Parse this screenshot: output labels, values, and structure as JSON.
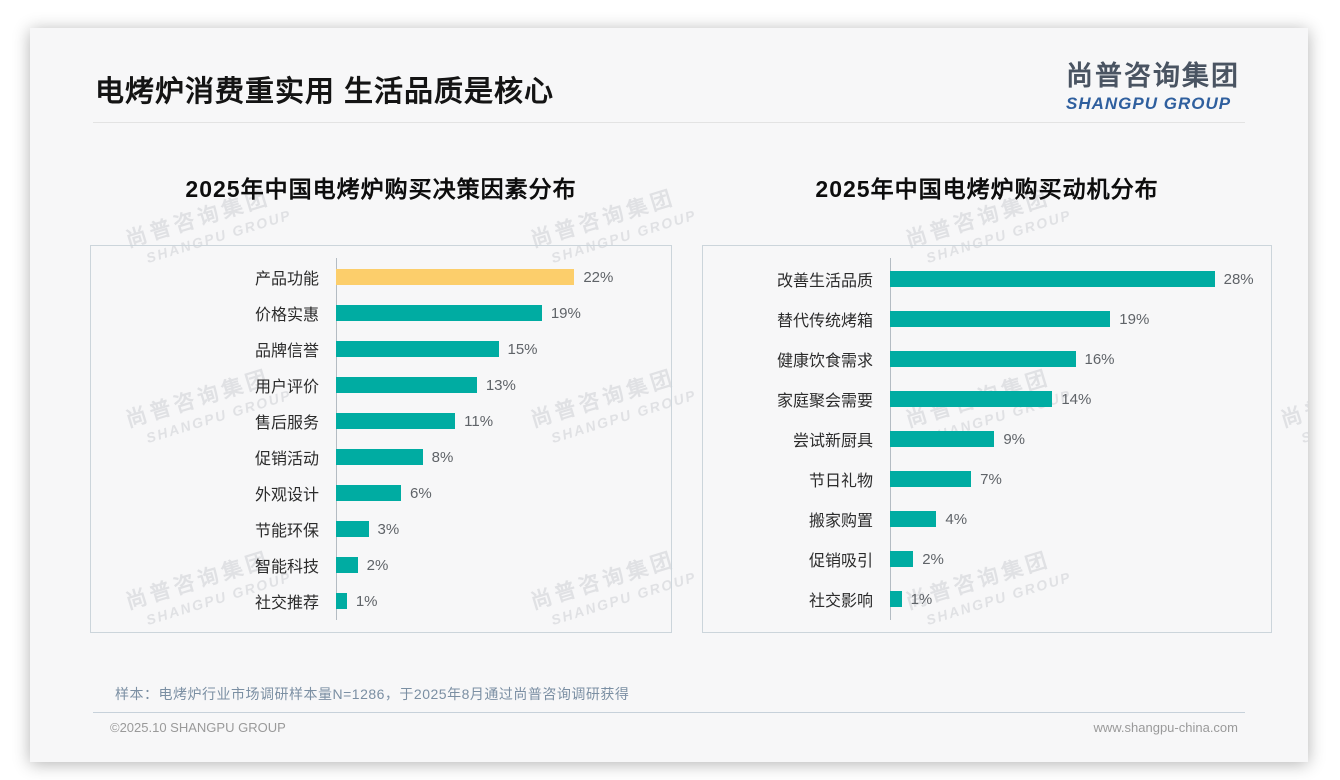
{
  "page": {
    "title": "电烤炉消费重实用 生活品质是核心",
    "logo": {
      "cn": "尚普咨询集团",
      "en": "SHANGPU GROUP"
    },
    "watermark": {
      "line1": "尚普咨询集团",
      "line2": "SHANGPU GROUP"
    },
    "sample_note": "样本：电烤炉行业市场调研样本量N=1286，于2025年8月通过尚普咨询调研获得",
    "footer": {
      "left": "©2025.10 SHANGPU GROUP",
      "right": "www.shangpu-china.com"
    }
  },
  "chart_data": [
    {
      "type": "bar",
      "orientation": "horizontal",
      "title": "2025年中国电烤炉购买决策因素分布",
      "categories": [
        "产品功能",
        "价格实惠",
        "品牌信誉",
        "用户评价",
        "售后服务",
        "促销活动",
        "外观设计",
        "节能环保",
        "智能科技",
        "社交推荐"
      ],
      "values": [
        22,
        19,
        15,
        13,
        11,
        8,
        6,
        3,
        2,
        1
      ],
      "unit": "%",
      "xlim": [
        0,
        30
      ],
      "grid": false,
      "legend": "none",
      "bar_color": "#00aca2",
      "highlight_index": 0,
      "highlight_color": "#fcce6b"
    },
    {
      "type": "bar",
      "orientation": "horizontal",
      "title": "2025年中国电烤炉购买动机分布",
      "categories": [
        "改善生活品质",
        "替代传统烤箱",
        "健康饮食需求",
        "家庭聚会需要",
        "尝试新厨具",
        "节日礼物",
        "搬家购置",
        "促销吸引",
        "社交影响"
      ],
      "values": [
        28,
        19,
        16,
        14,
        9,
        7,
        4,
        2,
        1
      ],
      "unit": "%",
      "xlim": [
        0,
        32
      ],
      "grid": false,
      "legend": "none",
      "bar_color": "#00aca2",
      "highlight_index": -1,
      "highlight_color": "#fcce6b"
    }
  ]
}
